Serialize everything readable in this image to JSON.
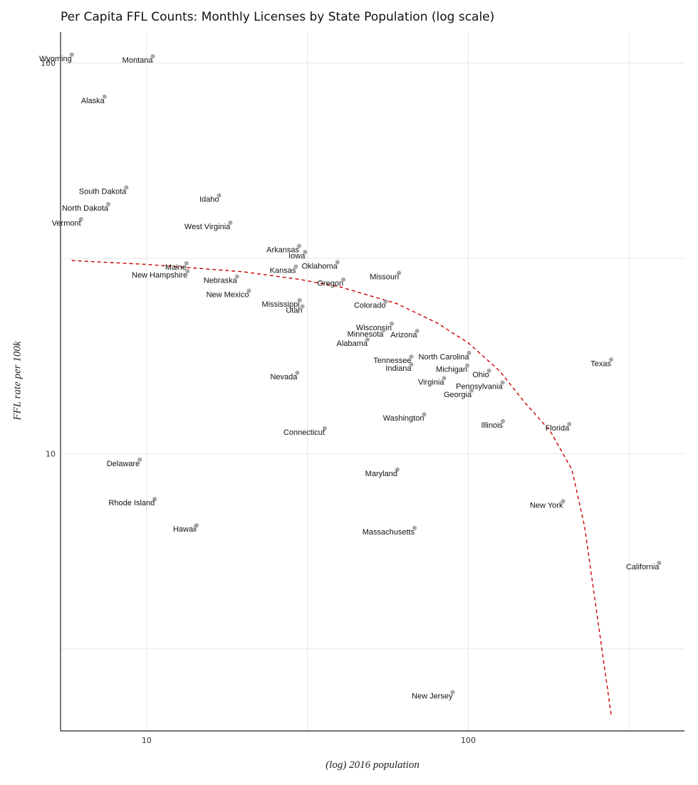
{
  "chart_data": {
    "type": "scatter",
    "title": "Per Capita FFL Counts: Monthly Licenses by State Population (log scale)",
    "xlabel": "(log) 2016 population",
    "ylabel": "FFL rate per 100k",
    "x_scale": "log",
    "y_scale": "log",
    "xlim": [
      5.4,
      470
    ],
    "ylim": [
      1.95,
      120
    ],
    "x_ticks": [
      10,
      100
    ],
    "y_ticks": [
      10,
      100
    ],
    "x_gridlines": [
      10,
      31.6,
      100,
      316
    ],
    "y_gridlines": [
      3.16,
      10,
      31.6,
      100
    ],
    "grid": true,
    "colors": {
      "points": "#aaaaaa",
      "trend": "#cc0000",
      "grid": "#e6e6e6",
      "axis": "#222222"
    },
    "points": [
      {
        "label": "Wyoming",
        "x": 5.85,
        "y": 105
      },
      {
        "label": "Montana",
        "x": 10.45,
        "y": 104
      },
      {
        "label": "Alaska",
        "x": 7.4,
        "y": 82
      },
      {
        "label": "South Dakota",
        "x": 8.65,
        "y": 48
      },
      {
        "label": "Idaho",
        "x": 16.8,
        "y": 45.8
      },
      {
        "label": "North Dakota",
        "x": 7.6,
        "y": 43.5
      },
      {
        "label": "Vermont",
        "x": 6.25,
        "y": 39.8
      },
      {
        "label": "West Virginia",
        "x": 18.2,
        "y": 39
      },
      {
        "label": "Arkansas",
        "x": 29.8,
        "y": 34
      },
      {
        "label": "Iowa",
        "x": 31.1,
        "y": 32.8
      },
      {
        "label": "Oklahoma",
        "x": 39.2,
        "y": 30.9
      },
      {
        "label": "Maine",
        "x": 13.3,
        "y": 30.7
      },
      {
        "label": "Kansas",
        "x": 29.1,
        "y": 30.1
      },
      {
        "label": "New Hampshire",
        "x": 13.4,
        "y": 29.3
      },
      {
        "label": "Missouri",
        "x": 60.9,
        "y": 29
      },
      {
        "label": "Nebraska",
        "x": 19.1,
        "y": 28.4
      },
      {
        "label": "Oregon",
        "x": 40.9,
        "y": 27.9
      },
      {
        "label": "New Mexico",
        "x": 20.8,
        "y": 26.1
      },
      {
        "label": "Mississippi",
        "x": 29.9,
        "y": 24.7
      },
      {
        "label": "Colorado",
        "x": 55.4,
        "y": 24.5
      },
      {
        "label": "Utah",
        "x": 30.5,
        "y": 23.8
      },
      {
        "label": "Wisconsin",
        "x": 57.8,
        "y": 21.5
      },
      {
        "label": "Arizona",
        "x": 69.3,
        "y": 20.6
      },
      {
        "label": "Minnesota",
        "x": 54.5,
        "y": 20.7
      },
      {
        "label": "Alabama",
        "x": 48.6,
        "y": 19.6
      },
      {
        "label": "North Carolina",
        "x": 100.5,
        "y": 18.1
      },
      {
        "label": "Tennessee",
        "x": 66.5,
        "y": 17.7
      },
      {
        "label": "Texas",
        "x": 278,
        "y": 17.4
      },
      {
        "label": "Indiana",
        "x": 66.5,
        "y": 16.9
      },
      {
        "label": "Michigan",
        "x": 99.3,
        "y": 16.8
      },
      {
        "label": "Ohio",
        "x": 116,
        "y": 16.3
      },
      {
        "label": "Nevada",
        "x": 29.4,
        "y": 16.1
      },
      {
        "label": "Virginia",
        "x": 84.1,
        "y": 15.6
      },
      {
        "label": "Pennsylvania",
        "x": 127.8,
        "y": 15.2
      },
      {
        "label": "Georgia",
        "x": 102.4,
        "y": 14.5
      },
      {
        "label": "Washington",
        "x": 72.9,
        "y": 12.6
      },
      {
        "label": "Illinois",
        "x": 128.1,
        "y": 12.1
      },
      {
        "label": "Florida",
        "x": 206,
        "y": 11.9
      },
      {
        "label": "Connecticut",
        "x": 35.8,
        "y": 11.6
      },
      {
        "label": "Delaware",
        "x": 9.52,
        "y": 9.65
      },
      {
        "label": "Maryland",
        "x": 60.2,
        "y": 9.1
      },
      {
        "label": "Rhode Island",
        "x": 10.6,
        "y": 7.65
      },
      {
        "label": "New York",
        "x": 197,
        "y": 7.55
      },
      {
        "label": "Hawaii",
        "x": 14.3,
        "y": 6.55
      },
      {
        "label": "Massachusetts",
        "x": 68.1,
        "y": 6.45
      },
      {
        "label": "California",
        "x": 392,
        "y": 5.25
      },
      {
        "label": "New Jersey",
        "x": 89.4,
        "y": 2.45
      }
    ],
    "trend": {
      "name": "",
      "style": "dashed",
      "x": [
        5.85,
        10,
        20,
        30,
        40,
        60,
        80,
        100,
        125,
        150,
        180,
        210,
        230,
        278
      ],
      "y": [
        31.2,
        30.5,
        29.2,
        27.9,
        26.7,
        24.2,
        21.6,
        19.2,
        16.3,
        13.5,
        11.4,
        9.1,
        6.5,
        2.15
      ]
    }
  }
}
